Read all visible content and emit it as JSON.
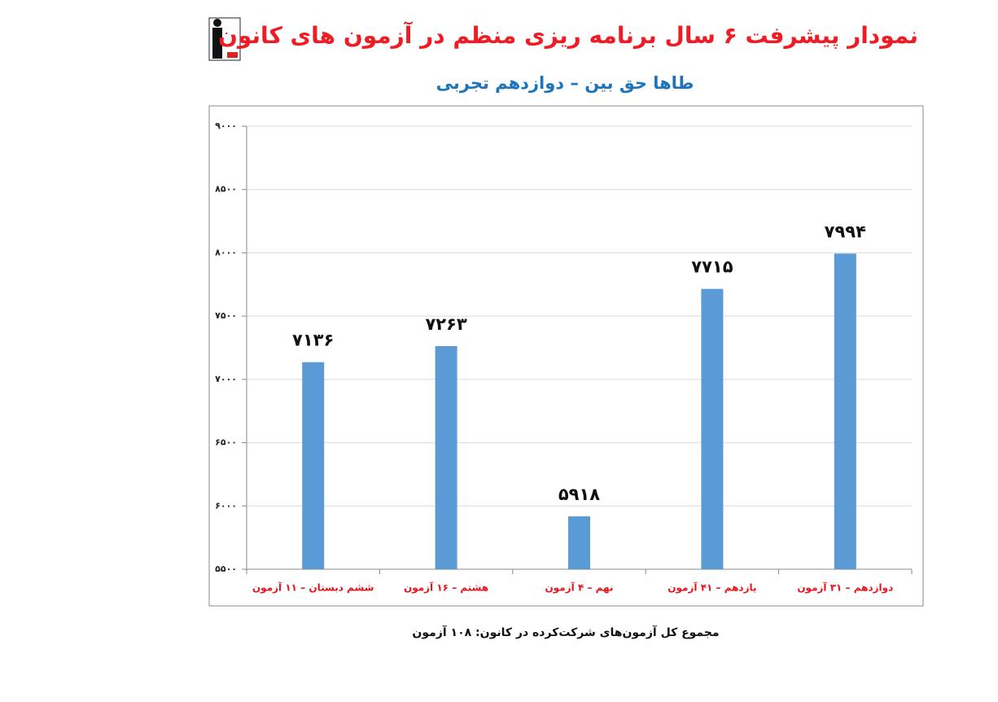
{
  "chart_data": {
    "type": "bar",
    "title": "نمودار پیشرفت ۶ سال برنامه ریزی منظم در آزمون های کانون",
    "subtitle": "طاها حق بین – دوازدهم تجربی",
    "footnote": "مجموع کل آزمون‌های شرکت‌کرده در کانون:  ۱۰۸ آزمون",
    "categories": [
      "ششم دبستان – ۱۱ آزمون",
      "هشتم – ۱۶ آزمون",
      "نهم – ۴ آزمون",
      "یازدهم – ۴۱ آزمون",
      "دوازدهم – ۳۱ آزمون"
    ],
    "values": [
      7136,
      7263,
      5918,
      7715,
      7994
    ],
    "value_labels": [
      "۷۱۳۶",
      "۷۲۶۳",
      "۵۹۱۸",
      "۷۷۱۵",
      "۷۹۹۴"
    ],
    "color": "#5b9bd5",
    "ylim": [
      5500,
      9000
    ],
    "yticks": [
      {
        "value": 5500,
        "label": "۵۵۰۰"
      },
      {
        "value": 6000,
        "label": "۶۰۰۰"
      },
      {
        "value": 6500,
        "label": "۶۵۰۰"
      },
      {
        "value": 7000,
        "label": "۷۰۰۰"
      },
      {
        "value": 7500,
        "label": "۷۵۰۰"
      },
      {
        "value": 8000,
        "label": "۸۰۰۰"
      },
      {
        "value": 8500,
        "label": "۸۵۰۰"
      },
      {
        "value": 9000,
        "label": "۹۰۰۰"
      }
    ],
    "grid": true
  }
}
